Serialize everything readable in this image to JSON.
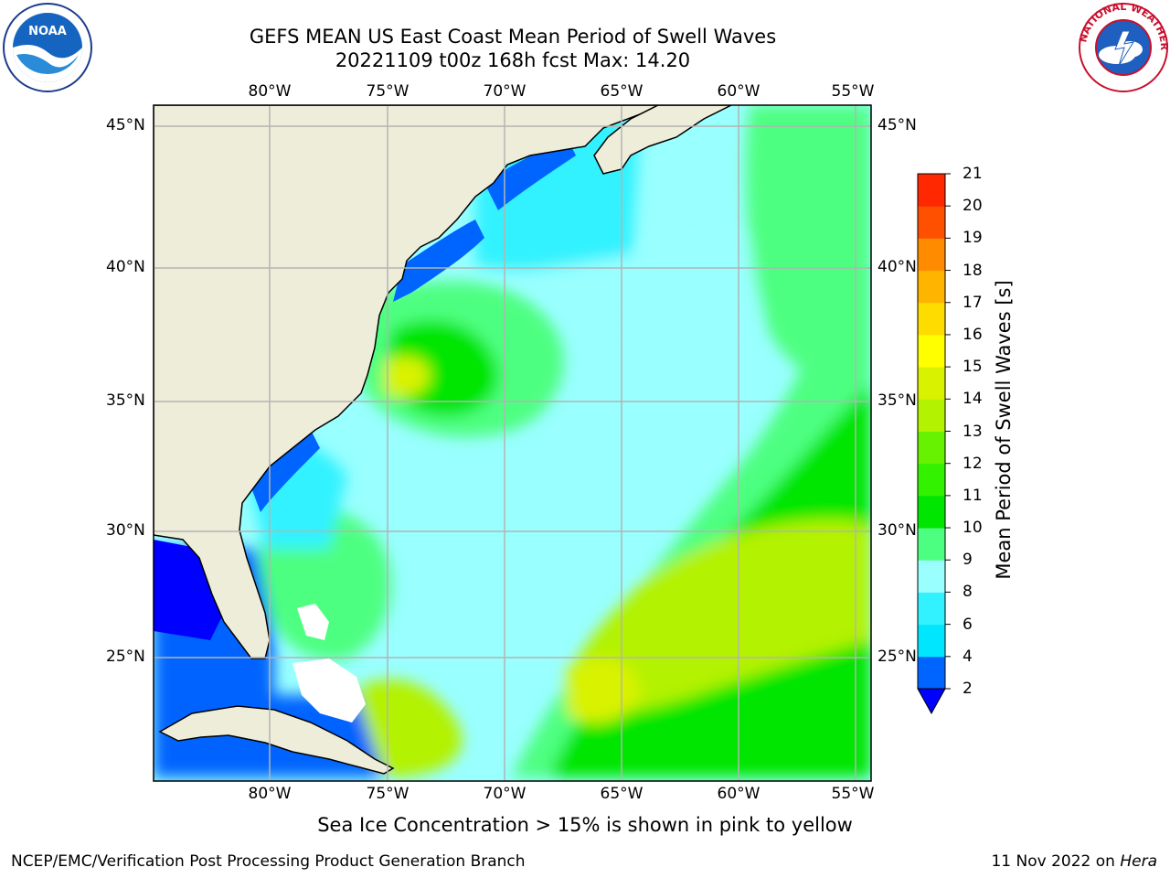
{
  "header": {
    "title_line1": "GEFS MEAN US East Coast Mean Period of Swell Waves",
    "title_line2": "20221109 t00z 168h fcst   Max: 14.20"
  },
  "logos": {
    "noaa_text": "NOAA",
    "noaa_ring": "NATIONAL OCEANIC AND ATMOSPHERIC ADMINISTRATION · U.S. DEPARTMENT OF COMMERCE",
    "nws_ring": "NATIONAL WEATHER SERVICE"
  },
  "map": {
    "lon_labels": [
      "80°W",
      "75°W",
      "70°W",
      "65°W",
      "60°W",
      "55°W"
    ],
    "lat_labels": [
      "45°N",
      "40°N",
      "35°N",
      "30°N",
      "25°N"
    ],
    "lon_range": [
      -85,
      -54.5
    ],
    "lat_range": [
      20.5,
      45.8
    ],
    "gridlines": true,
    "colors": {
      "land": "#eeedd9",
      "gridline": "#b4b4b4",
      "coast": "#000000"
    }
  },
  "colorbar": {
    "label": "Mean Period of Swell Waves [s]",
    "ticks": [
      "2",
      "4",
      "6",
      "8",
      "9",
      "10",
      "11",
      "12",
      "13",
      "14",
      "15",
      "16",
      "17",
      "18",
      "19",
      "20",
      "21"
    ],
    "colors": [
      "#0064ff",
      "#00e6ff",
      "#33f2ff",
      "#99ffff",
      "#4dff80",
      "#00e600",
      "#33f200",
      "#66f200",
      "#b3f200",
      "#d9f200",
      "#ffff00",
      "#ffdc00",
      "#ffb400",
      "#ff8c00",
      "#ff5000",
      "#ff2800",
      "#ff0000"
    ],
    "under_color": "#0000ff"
  },
  "footer": {
    "note": "Sea Ice Concentration > 15% is shown in pink to yellow",
    "left": "NCEP/EMC/Verification Post Processing Product Generation Branch",
    "right_date": "11 Nov 2022 on",
    "right_host": "Hera"
  }
}
